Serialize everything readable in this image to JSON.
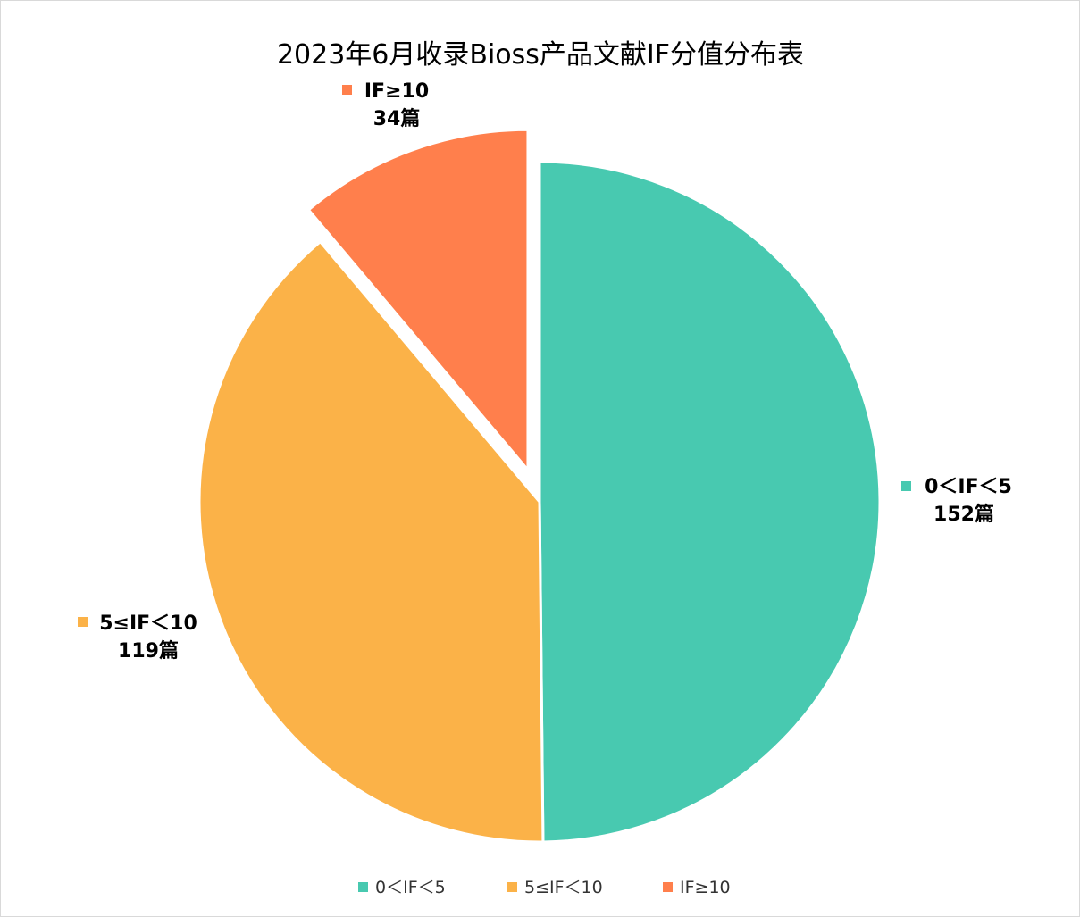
{
  "chart_data": {
    "type": "pie",
    "title": "2023年6月收录Bioss产品文献IF分值分布表",
    "unit": "篇",
    "categories": [
      "0＜IF＜5",
      "5≤IF＜10",
      "IF≥10"
    ],
    "values": [
      152,
      119,
      34
    ],
    "value_labels": [
      "152篇",
      "119篇",
      "34篇"
    ],
    "colors": [
      "#48C9B0",
      "#FBB248",
      "#FF7F4C"
    ],
    "exploded": [
      false,
      false,
      true
    ],
    "legend": "bottom",
    "start_angle_deg": 0,
    "direction": "clockwise"
  }
}
